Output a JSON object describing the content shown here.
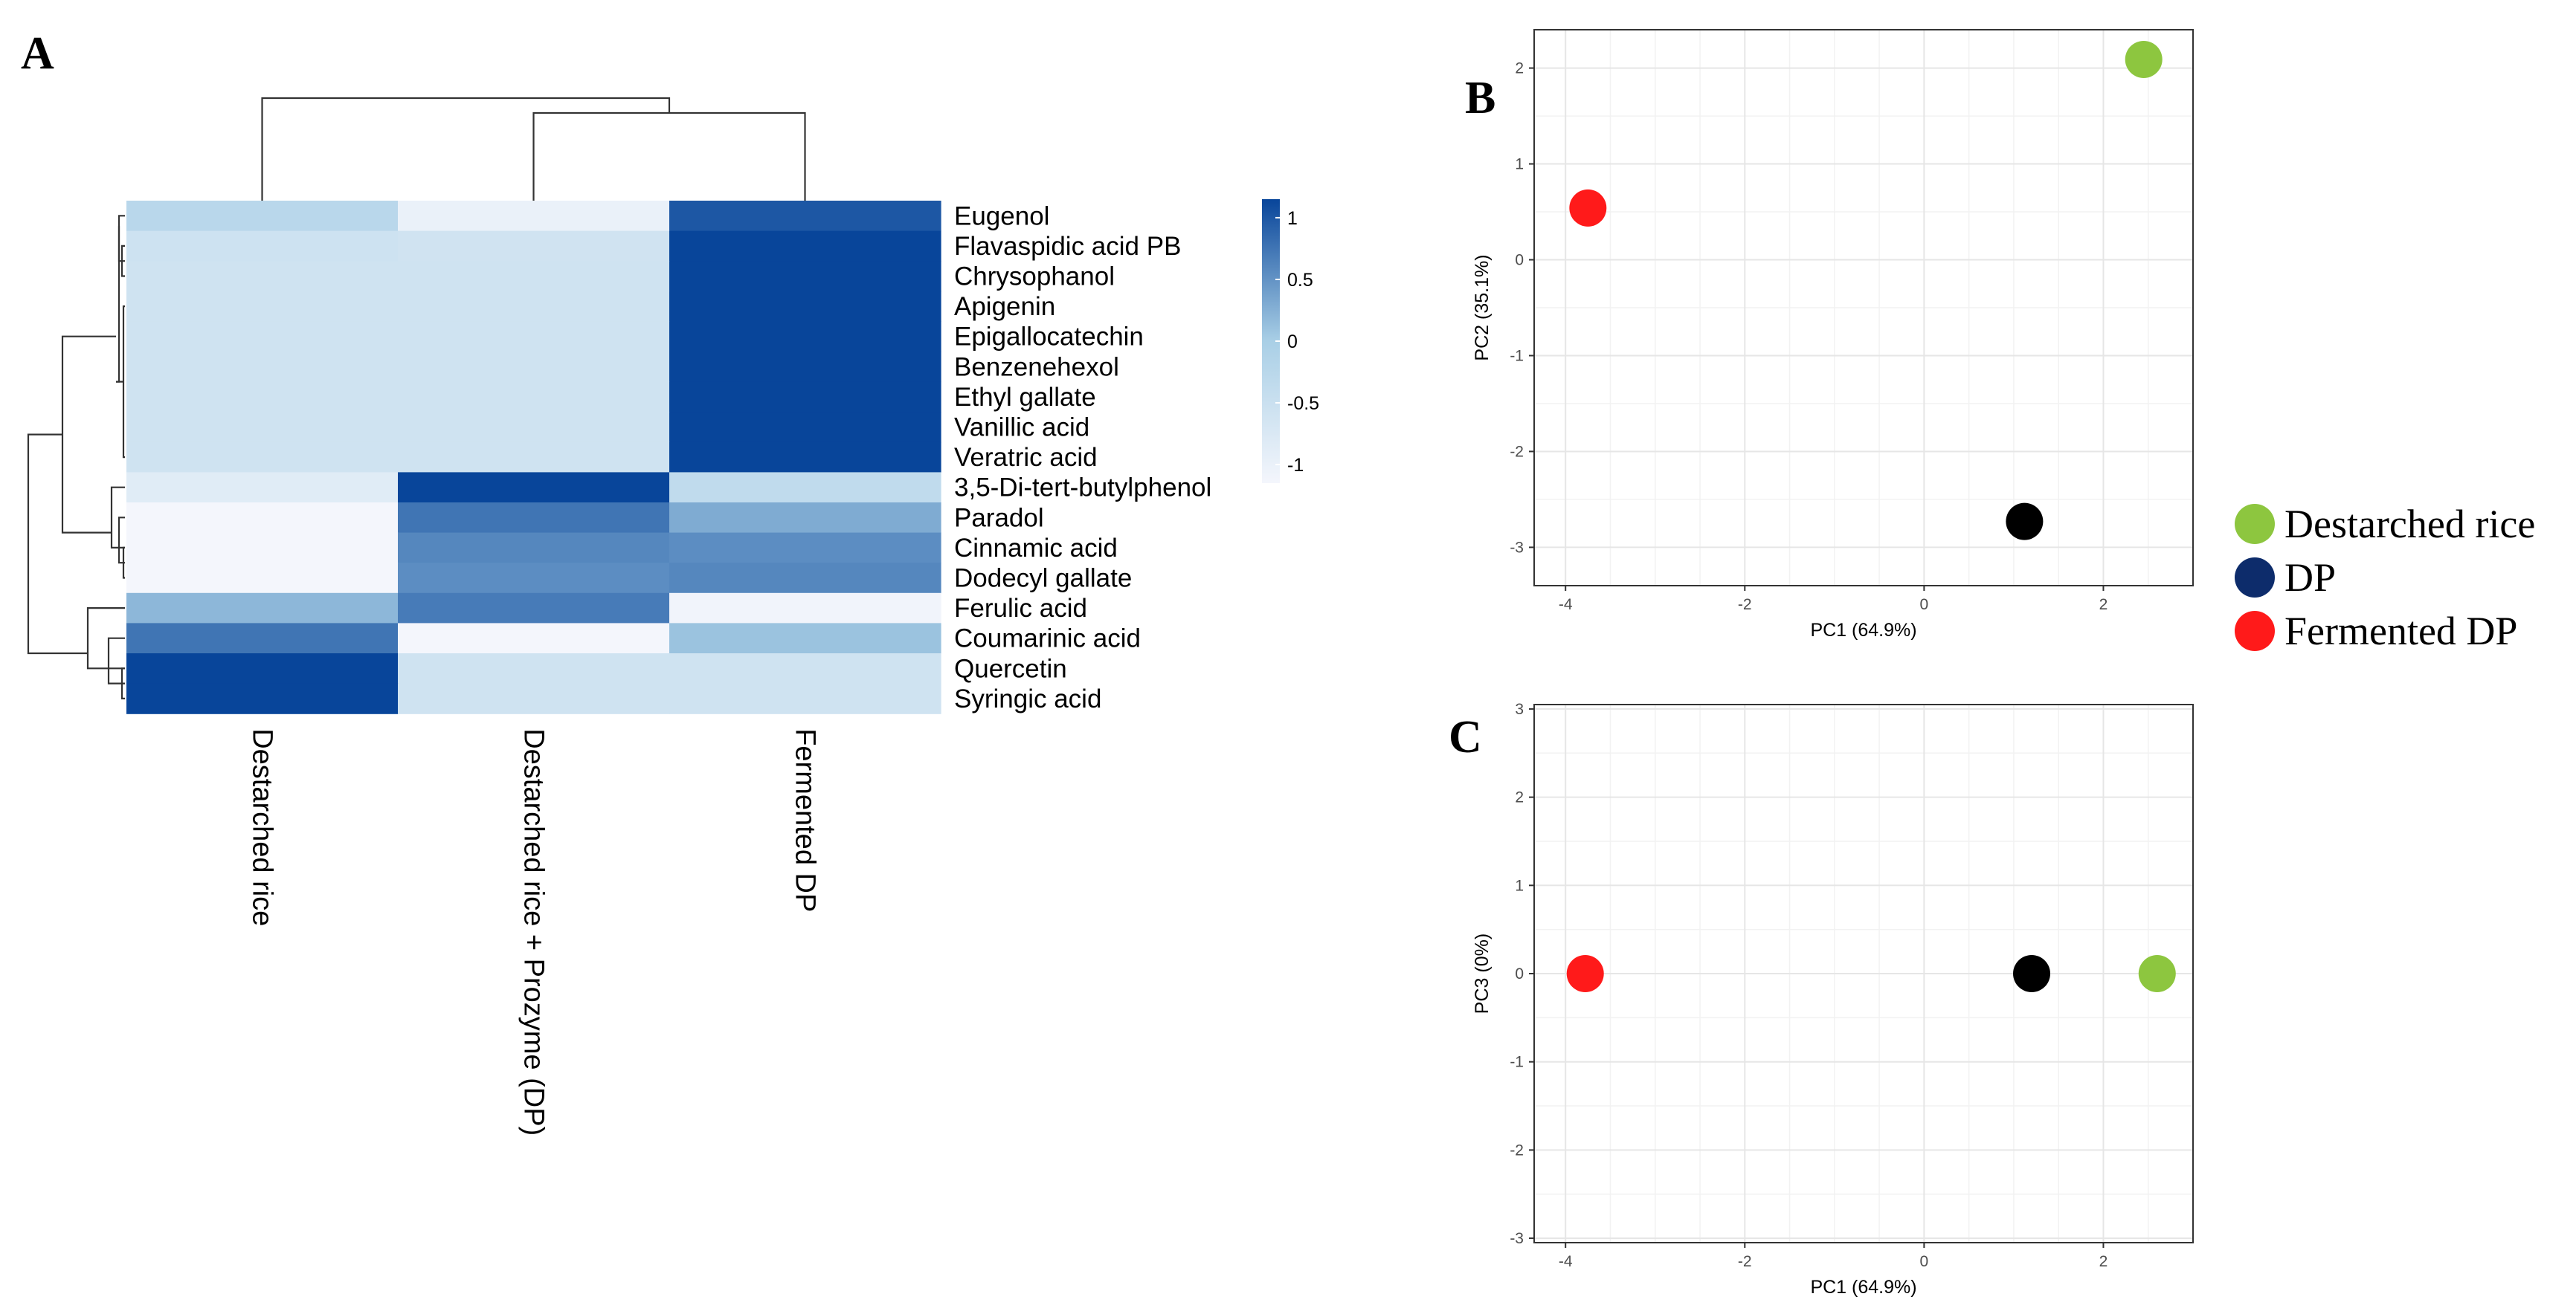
{
  "panel_labels": {
    "a": "A",
    "b": "B",
    "c": "C"
  },
  "chart_data": [
    {
      "type": "heatmap",
      "panel": "A",
      "columns": [
        "Destarched rice",
        "Destarched rice + Prozyme (DP)",
        "Fermented DP"
      ],
      "rows": [
        "Eugenol",
        "Flavaspidic acid PB",
        "Chrysophanol",
        "Apigenin",
        "Epigallocatechin",
        "Benzenehexol",
        "Ethyl gallate",
        "Vanillic acid",
        "Veratric acid",
        "3,5-Di-tert-butylphenol",
        "Paradol",
        "Cinnamic acid",
        "Dodecyl gallate",
        "Ferulic acid",
        "Coumarinic acid",
        "Quercetin",
        "Syringic acid"
      ],
      "values": [
        [
          -0.25,
          -1.0,
          1.0
        ],
        [
          -0.55,
          -0.6,
          1.15
        ],
        [
          -0.58,
          -0.58,
          1.15
        ],
        [
          -0.58,
          -0.58,
          1.15
        ],
        [
          -0.58,
          -0.58,
          1.15
        ],
        [
          -0.58,
          -0.58,
          1.15
        ],
        [
          -0.58,
          -0.58,
          1.15
        ],
        [
          -0.58,
          -0.58,
          1.15
        ],
        [
          -0.58,
          -0.58,
          1.15
        ],
        [
          -0.85,
          1.15,
          -0.35
        ],
        [
          -1.15,
          0.75,
          0.3
        ],
        [
          -1.15,
          0.6,
          0.55
        ],
        [
          -1.15,
          0.55,
          0.6
        ],
        [
          0.2,
          0.7,
          -1.1
        ],
        [
          0.75,
          -1.15,
          0.1
        ],
        [
          1.15,
          -0.58,
          -0.58
        ],
        [
          1.15,
          -0.58,
          -0.58
        ]
      ],
      "colorbar": {
        "ticks": [
          1,
          0.5,
          0,
          -0.5,
          -1
        ],
        "tick_labels": [
          "1",
          "0.5",
          "0",
          "-0.5",
          "-1"
        ],
        "min": -1.15,
        "max": 1.15,
        "low_color": "#f4f6fc",
        "mid_color": "#a9cfe6",
        "high_color": "#08459a"
      },
      "dendrograms": {
        "rows": true,
        "columns": true
      }
    },
    {
      "type": "scatter",
      "panel": "B",
      "xlabel": "PC1 (64.9%)",
      "ylabel": "PC2 (35.1%)",
      "xlim": [
        -4.35,
        3.0
      ],
      "ylim": [
        -3.4,
        2.4
      ],
      "xticks": [
        -4,
        -2,
        0,
        2
      ],
      "xtick_labels": [
        "-4",
        "-2",
        "0",
        "2"
      ],
      "yticks": [
        2,
        1,
        0,
        -1,
        -2,
        -3
      ],
      "ytick_labels": [
        "2",
        "1",
        "0",
        "-1",
        "-2",
        "-3"
      ],
      "points": [
        {
          "group": "Destarched rice",
          "x": 2.45,
          "y": 2.09,
          "color": "#8dc63f"
        },
        {
          "group": "Fermented DP",
          "x": -3.75,
          "y": 0.54,
          "color": "#ff1a1a"
        },
        {
          "group": "DP",
          "x": 1.12,
          "y": -2.73,
          "color": "#000000"
        }
      ]
    },
    {
      "type": "scatter",
      "panel": "C",
      "xlabel": "PC1 (64.9%)",
      "ylabel": "PC3 (0%)",
      "xlim": [
        -4.35,
        3.0
      ],
      "ylim": [
        -3.05,
        3.05
      ],
      "xticks": [
        -4,
        -2,
        0,
        2
      ],
      "xtick_labels": [
        "-4",
        "-2",
        "0",
        "2"
      ],
      "yticks": [
        3,
        2,
        1,
        0,
        -1,
        -2,
        -3
      ],
      "ytick_labels": [
        "3",
        "2",
        "1",
        "0",
        "-1",
        "-2",
        "-3"
      ],
      "points": [
        {
          "group": "Fermented DP",
          "x": -3.78,
          "y": 0.0,
          "color": "#ff1a1a"
        },
        {
          "group": "DP",
          "x": 1.2,
          "y": 0.0,
          "color": "#000000"
        },
        {
          "group": "Destarched rice",
          "x": 2.6,
          "y": 0.0,
          "color": "#8dc63f"
        }
      ]
    }
  ],
  "legend": [
    {
      "label": "Destarched rice",
      "color": "#8dc63f"
    },
    {
      "label": "DP",
      "color": "#0d2c6b"
    },
    {
      "label": "Fermented DP",
      "color": "#ff1a1a"
    }
  ]
}
